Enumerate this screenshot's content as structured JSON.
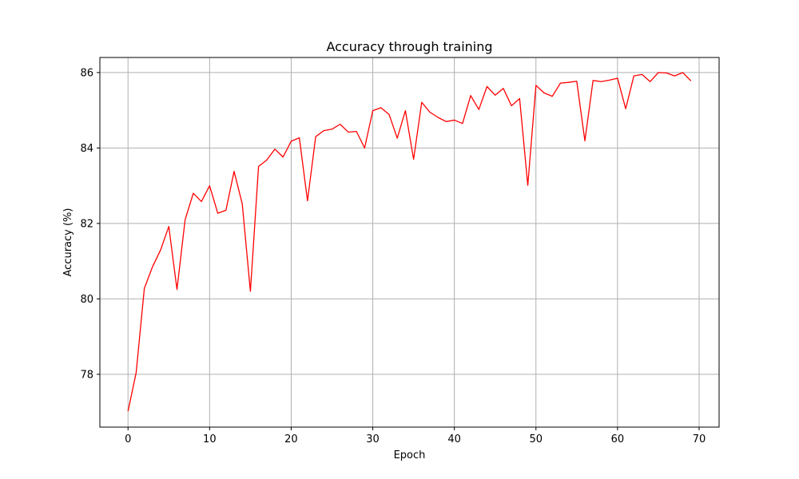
{
  "chart_data": {
    "type": "line",
    "title": "Accuracy through training",
    "xlabel": "Epoch",
    "ylabel": "Accuracy (%)",
    "xlim": [
      -3.45,
      72.45
    ],
    "ylim": [
      76.6,
      86.4
    ],
    "x_ticks": [
      0,
      10,
      20,
      30,
      40,
      50,
      60,
      70
    ],
    "y_ticks": [
      78,
      80,
      82,
      84,
      86
    ],
    "grid": true,
    "series": [
      {
        "color": "#ff0000",
        "x": [
          0,
          1,
          2,
          3,
          4,
          5,
          6,
          7,
          8,
          9,
          10,
          11,
          12,
          13,
          14,
          15,
          16,
          17,
          18,
          19,
          20,
          21,
          22,
          23,
          24,
          25,
          26,
          27,
          28,
          29,
          30,
          31,
          32,
          33,
          34,
          35,
          36,
          37,
          38,
          39,
          40,
          41,
          42,
          43,
          44,
          45,
          46,
          47,
          48,
          49,
          50,
          51,
          52,
          53,
          54,
          55,
          56,
          57,
          58,
          59,
          60,
          61,
          62,
          63,
          64,
          65,
          66,
          67,
          68,
          69
        ],
        "y": [
          77.02,
          78.05,
          80.28,
          80.85,
          81.3,
          81.92,
          80.25,
          82.1,
          82.8,
          82.58,
          83.0,
          82.27,
          82.35,
          83.38,
          82.52,
          80.2,
          83.51,
          83.68,
          83.97,
          83.76,
          84.18,
          84.27,
          82.6,
          84.3,
          84.46,
          84.5,
          84.63,
          84.42,
          84.44,
          84.0,
          84.99,
          85.07,
          84.89,
          84.26,
          84.99,
          83.7,
          85.21,
          84.95,
          84.81,
          84.7,
          84.74,
          84.65,
          85.39,
          85.02,
          85.63,
          85.4,
          85.58,
          85.12,
          85.31,
          83.01,
          85.66,
          85.46,
          85.37,
          85.72,
          85.74,
          85.77,
          84.19,
          85.79,
          85.76,
          85.8,
          85.85,
          85.04,
          85.91,
          85.95,
          85.76,
          86.0,
          85.99,
          85.91,
          86.0,
          85.78
        ]
      }
    ]
  }
}
